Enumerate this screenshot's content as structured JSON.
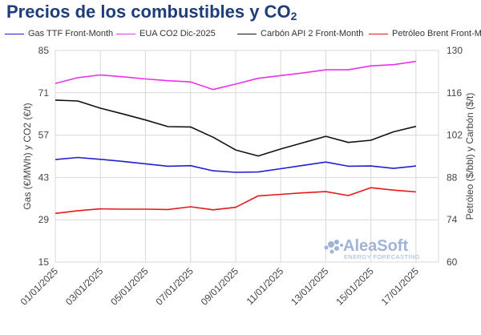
{
  "title": {
    "main": "Precios de los combustibles y CO",
    "sub": "2"
  },
  "watermark": {
    "brand": "AleaSoft",
    "tagline": "ENERGY FORECASTING",
    "color": "#9fb4d6"
  },
  "chart_data": {
    "type": "line",
    "x": [
      "01/01/2025",
      "02/01/2025",
      "03/01/2025",
      "04/01/2025",
      "05/01/2025",
      "06/01/2025",
      "07/01/2025",
      "08/01/2025",
      "09/01/2025",
      "10/01/2025",
      "11/01/2025",
      "12/01/2025",
      "13/01/2025",
      "14/01/2025",
      "15/01/2025",
      "16/01/2025",
      "17/01/2025",
      "18/01/2025"
    ],
    "x_tick_labels": [
      "01/01/2025",
      "03/01/2025",
      "05/01/2025",
      "07/01/2025",
      "09/01/2025",
      "11/01/2025",
      "13/01/2025",
      "15/01/2025",
      "17/01/2025"
    ],
    "ylabel": "Gas (€/MWh) y CO2 (€/t)",
    "y2label": "Petróleo ($/bbl) y Carbón ($/t)",
    "ylim": [
      15,
      85
    ],
    "y2lim": [
      60,
      130
    ],
    "yticks": [
      15,
      29,
      43,
      57,
      71,
      85
    ],
    "y2ticks": [
      60,
      74,
      88,
      102,
      116,
      130
    ],
    "grid": true,
    "legend_position": "top",
    "series": [
      {
        "name": "Gas TTF Front-Month",
        "axis": "left",
        "color": "#1f1fd6",
        "values": [
          48.9,
          49.6,
          49.0,
          48.3,
          47.5,
          46.7,
          46.9,
          45.2,
          44.7,
          44.8,
          45.9,
          47.0,
          48.1,
          46.7,
          46.8,
          46.0,
          46.8,
          null
        ]
      },
      {
        "name": "EUA CO2 Dic-2025",
        "axis": "left",
        "color": "#e832e8",
        "values": [
          74.1,
          76.0,
          76.9,
          76.3,
          75.6,
          75.0,
          74.6,
          72.1,
          73.9,
          75.8,
          76.7,
          77.6,
          78.6,
          78.6,
          79.9,
          80.3,
          81.4,
          null
        ]
      },
      {
        "name": "Carbón API 2 Front-Month",
        "axis": "right",
        "color": "#111111",
        "values": [
          113.6,
          113.3,
          110.9,
          109.0,
          107.0,
          104.8,
          104.7,
          101.3,
          97.1,
          95.1,
          97.4,
          99.5,
          101.6,
          99.6,
          100.3,
          103.1,
          104.9,
          null
        ]
      },
      {
        "name": "Petróleo Brent Front-Month",
        "axis": "right",
        "color": "#e41a1a",
        "values": [
          76.1,
          77.0,
          77.6,
          77.5,
          77.5,
          77.4,
          78.3,
          77.3,
          78.1,
          81.9,
          82.4,
          82.9,
          83.3,
          82.0,
          84.6,
          83.8,
          83.2,
          null
        ]
      }
    ]
  }
}
